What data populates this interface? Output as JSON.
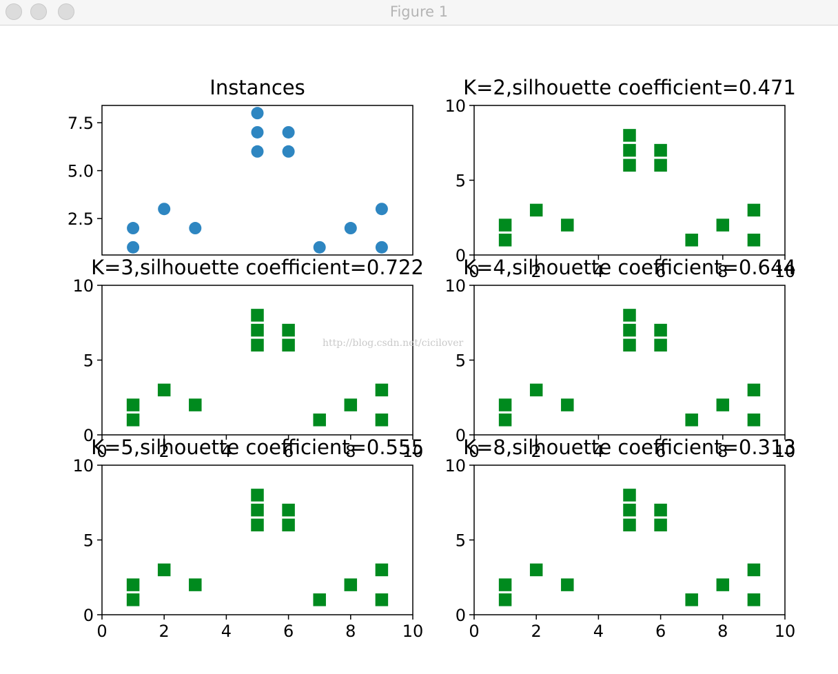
{
  "window": {
    "title": "Figure 1",
    "traffic_lights": [
      "close-button",
      "minimize-button",
      "zoom-button"
    ]
  },
  "watermark": "http://blog.csdn.net/cicilover",
  "colors": {
    "instances": "#2e86c1",
    "clusters": "#008a1e"
  },
  "chart_data": [
    {
      "type": "scatter",
      "title": "Instances",
      "marker": "circle",
      "xlim": [
        0,
        10
      ],
      "ylim": [
        0.6,
        8.4
      ],
      "xticks": [],
      "yticks": [
        2.5,
        5.0,
        7.5
      ],
      "ytick_labels": [
        "2.5",
        "5.0",
        "7.5"
      ],
      "x": [
        1,
        2,
        3,
        1,
        5,
        6,
        5,
        7,
        8,
        9,
        6,
        9,
        5
      ],
      "y": [
        1,
        3,
        2,
        2,
        8,
        6,
        7,
        1,
        2,
        1,
        7,
        3,
        6
      ]
    },
    {
      "type": "scatter",
      "title": "K=2,silhouette coefficient=0.471",
      "marker": "square",
      "xlim": [
        0,
        10
      ],
      "ylim": [
        0,
        10
      ],
      "xticks": [
        0,
        2,
        4,
        6,
        8,
        10
      ],
      "xtick_labels": [
        "0",
        "2",
        "4",
        "6",
        "8",
        "10"
      ],
      "yticks": [
        0,
        5,
        10
      ],
      "ytick_labels": [
        "0",
        "5",
        "10"
      ],
      "x": [
        1,
        2,
        3,
        1,
        5,
        6,
        5,
        7,
        8,
        9,
        6,
        9,
        5
      ],
      "y": [
        1,
        3,
        2,
        2,
        8,
        6,
        7,
        1,
        2,
        1,
        7,
        3,
        6
      ]
    },
    {
      "type": "scatter",
      "title": "K=3,silhouette coefficient=0.722",
      "marker": "square",
      "xlim": [
        0,
        10
      ],
      "ylim": [
        0,
        10
      ],
      "xticks": [
        0,
        2,
        4,
        6,
        8,
        10
      ],
      "xtick_labels": [
        "0",
        "2",
        "4",
        "6",
        "8",
        "10"
      ],
      "yticks": [
        0,
        5,
        10
      ],
      "ytick_labels": [
        "0",
        "5",
        "10"
      ],
      "x": [
        1,
        2,
        3,
        1,
        5,
        6,
        5,
        7,
        8,
        9,
        6,
        9,
        5
      ],
      "y": [
        1,
        3,
        2,
        2,
        8,
        6,
        7,
        1,
        2,
        1,
        7,
        3,
        6
      ]
    },
    {
      "type": "scatter",
      "title": "K=4,silhouette coefficient=0.644",
      "marker": "square",
      "xlim": [
        0,
        10
      ],
      "ylim": [
        0,
        10
      ],
      "xticks": [
        0,
        2,
        4,
        6,
        8,
        10
      ],
      "xtick_labels": [
        "0",
        "2",
        "4",
        "6",
        "8",
        "10"
      ],
      "yticks": [
        0,
        5,
        10
      ],
      "ytick_labels": [
        "0",
        "5",
        "10"
      ],
      "x": [
        1,
        2,
        3,
        1,
        5,
        6,
        5,
        7,
        8,
        9,
        6,
        9,
        5
      ],
      "y": [
        1,
        3,
        2,
        2,
        8,
        6,
        7,
        1,
        2,
        1,
        7,
        3,
        6
      ]
    },
    {
      "type": "scatter",
      "title": "K=5,silhouette coefficient=0.555",
      "marker": "square",
      "xlim": [
        0,
        10
      ],
      "ylim": [
        0,
        10
      ],
      "xticks": [
        0,
        2,
        4,
        6,
        8,
        10
      ],
      "xtick_labels": [
        "0",
        "2",
        "4",
        "6",
        "8",
        "10"
      ],
      "yticks": [
        0,
        5,
        10
      ],
      "ytick_labels": [
        "0",
        "5",
        "10"
      ],
      "x": [
        1,
        2,
        3,
        1,
        5,
        6,
        5,
        7,
        8,
        9,
        6,
        9,
        5
      ],
      "y": [
        1,
        3,
        2,
        2,
        8,
        6,
        7,
        1,
        2,
        1,
        7,
        3,
        6
      ]
    },
    {
      "type": "scatter",
      "title": "K=8,silhouette coefficient=0.313",
      "marker": "square",
      "xlim": [
        0,
        10
      ],
      "ylim": [
        0,
        10
      ],
      "xticks": [
        0,
        2,
        4,
        6,
        8,
        10
      ],
      "xtick_labels": [
        "0",
        "2",
        "4",
        "6",
        "8",
        "10"
      ],
      "yticks": [
        0,
        5,
        10
      ],
      "ytick_labels": [
        "0",
        "5",
        "10"
      ],
      "x": [
        1,
        2,
        3,
        1,
        5,
        6,
        5,
        7,
        8,
        9,
        6,
        9,
        5
      ],
      "y": [
        1,
        3,
        2,
        2,
        8,
        6,
        7,
        1,
        2,
        1,
        7,
        3,
        6
      ]
    }
  ]
}
